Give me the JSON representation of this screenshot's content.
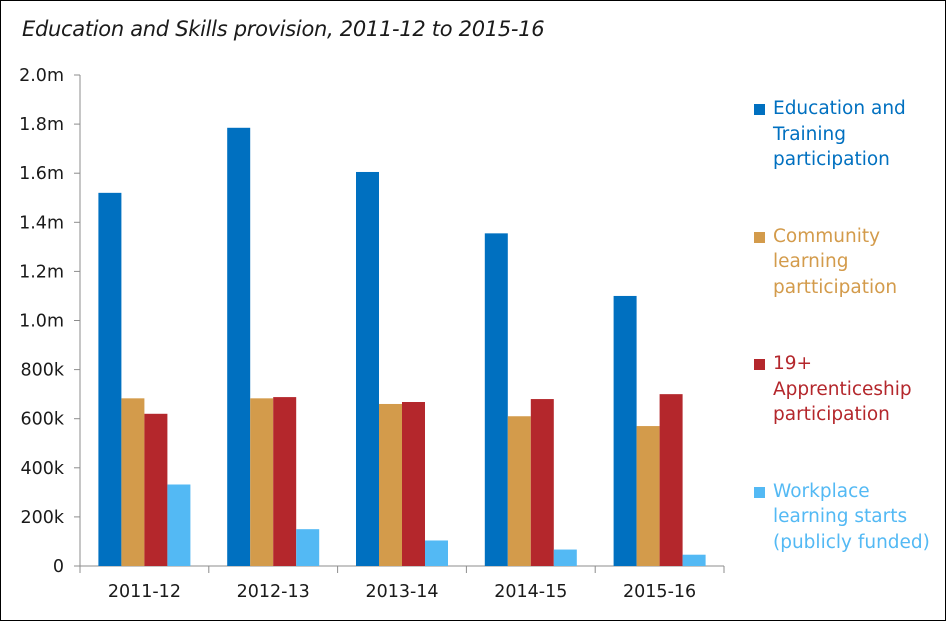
{
  "chart_data": {
    "type": "bar",
    "title": "Education and Skills provision, 2011-12 to 2015-16",
    "xlabel": "",
    "ylabel": "",
    "categories": [
      "2011-12",
      "2012-13",
      "2013-14",
      "2014-15",
      "2015-16"
    ],
    "ylim": [
      0,
      2000000
    ],
    "yticks": [
      {
        "value": 0,
        "label": "0"
      },
      {
        "value": 200000,
        "label": "200k"
      },
      {
        "value": 400000,
        "label": "400k"
      },
      {
        "value": 600000,
        "label": "600k"
      },
      {
        "value": 800000,
        "label": "800k"
      },
      {
        "value": 1000000,
        "label": "1.0m"
      },
      {
        "value": 1200000,
        "label": "1.2m"
      },
      {
        "value": 1400000,
        "label": "1.4m"
      },
      {
        "value": 1600000,
        "label": "1.6m"
      },
      {
        "value": 1800000,
        "label": "1.8m"
      },
      {
        "value": 2000000,
        "label": "2.0m"
      }
    ],
    "grid": false,
    "legend_position": "right",
    "series": [
      {
        "name": "Education and Training participation",
        "color": "#0070c0",
        "values": [
          1520000,
          1785000,
          1605000,
          1355000,
          1100000
        ]
      },
      {
        "name": "Community learning partticipation",
        "color": "#d39b4b",
        "values": [
          683000,
          683000,
          660000,
          610000,
          570000
        ]
      },
      {
        "name": "19+ Apprenticeship participation",
        "color": "#b4272c",
        "values": [
          620000,
          688000,
          668000,
          680000,
          700000
        ]
      },
      {
        "name": "Workplace learning starts (publicly funded)",
        "color": "#53b9f4",
        "values": [
          332000,
          150000,
          104000,
          67000,
          46000
        ]
      }
    ]
  }
}
